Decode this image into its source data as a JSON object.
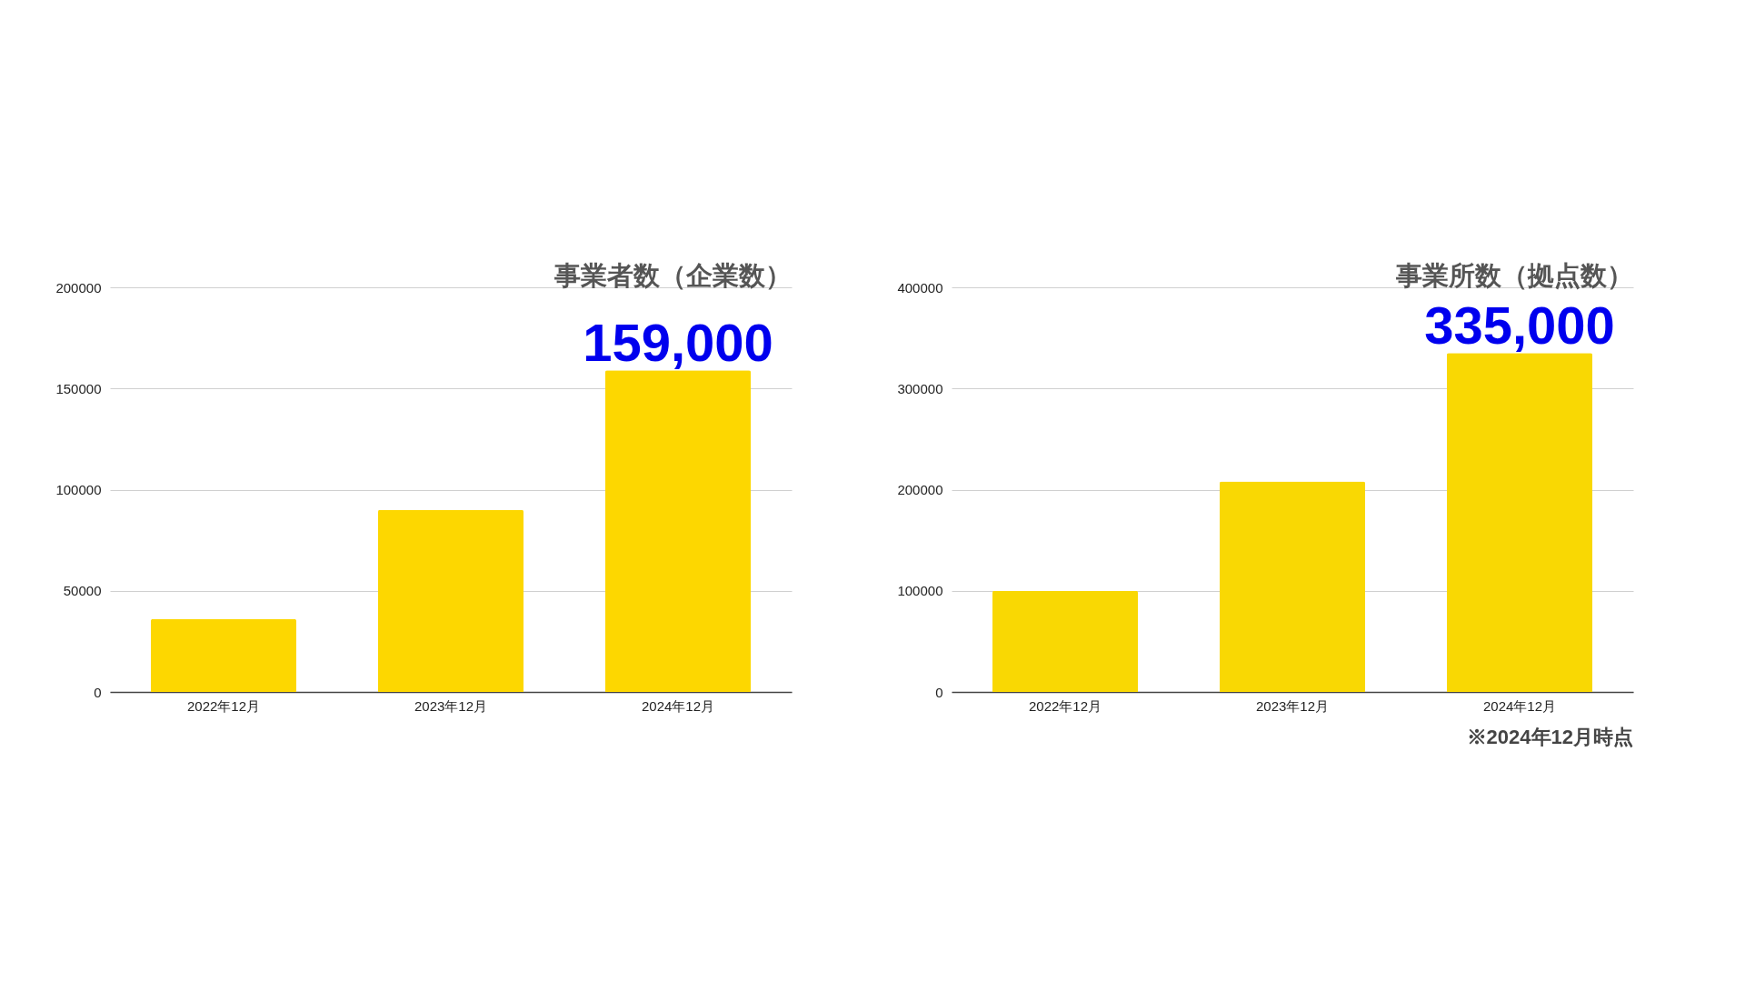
{
  "chart_data": [
    {
      "type": "bar",
      "title": "事業者数（企業数）",
      "categories": [
        "2022年12月",
        "2023年12月",
        "2024年12月"
      ],
      "values": [
        36000,
        90000,
        159000
      ],
      "color": "#fdd700",
      "value_labels": [
        null,
        null,
        "159,000"
      ],
      "ylim": [
        0,
        200000
      ],
      "yticks": [
        0,
        50000,
        100000,
        150000,
        200000
      ],
      "grid": "y"
    },
    {
      "type": "bar",
      "title": "事業所数（拠点数）",
      "categories": [
        "2022年12月",
        "2023年12月",
        "2024年12月"
      ],
      "values": [
        100000,
        208000,
        335000
      ],
      "color": "#f9d803",
      "value_labels": [
        null,
        null,
        "335,000"
      ],
      "ylim": [
        0,
        400000
      ],
      "yticks": [
        0,
        100000,
        200000,
        300000,
        400000
      ],
      "grid": "y",
      "annotations": [
        "※2024年12月時点"
      ]
    }
  ]
}
